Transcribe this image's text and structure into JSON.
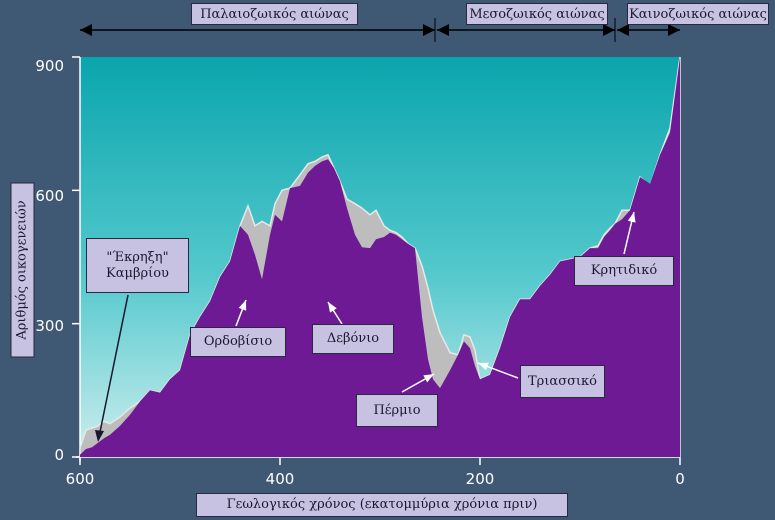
{
  "chart_data": {
    "type": "area",
    "title": "",
    "xlabel": "Γεωλογικός χρόνος (εκατομμύρια χρόνια πριν)",
    "ylabel": "Αριθμός οικογενειών",
    "xlim": [
      600,
      0
    ],
    "ylim": [
      0,
      900
    ],
    "x_ticks": [
      "600",
      "400",
      "200",
      "0"
    ],
    "y_ticks": [
      "0",
      "300",
      "600",
      "900"
    ],
    "grid": false,
    "eras": [
      {
        "label": "Παλαιοζωικός αιώνας",
        "from": 600,
        "to": 245
      },
      {
        "label": "Μεσοζωικός αιώνας",
        "from": 245,
        "to": 65
      },
      {
        "label": "Καινοζωικός αιώνας",
        "from": 65,
        "to": 0
      }
    ],
    "series": [
      {
        "x": [
          600,
          594,
          588,
          582,
          576,
          570,
          560,
          550,
          540,
          530,
          520,
          510,
          500,
          490,
          480,
          470,
          460,
          450,
          440,
          432,
          425,
          418,
          410,
          405,
          398,
          390,
          380,
          372,
          365,
          358,
          352,
          346,
          340,
          333,
          325,
          318,
          310,
          304,
          296,
          290,
          284,
          278,
          272,
          265,
          258,
          252,
          247,
          240,
          230,
          222,
          216,
          210,
          205,
          200,
          190,
          180,
          170,
          160,
          150,
          140,
          130,
          120,
          110,
          100,
          90,
          82,
          76,
          70,
          65,
          58,
          50,
          40,
          30,
          20,
          10,
          0
        ],
        "y": [
          5,
          18,
          22,
          32,
          42,
          50,
          70,
          95,
          125,
          150,
          145,
          175,
          195,
          275,
          315,
          350,
          405,
          440,
          520,
          500,
          455,
          400,
          500,
          545,
          530,
          605,
          610,
          640,
          655,
          665,
          670,
          650,
          620,
          560,
          500,
          472,
          470,
          490,
          495,
          505,
          500,
          490,
          480,
          470,
          315,
          220,
          175,
          155,
          195,
          230,
          260,
          245,
          205,
          175,
          185,
          245,
          315,
          355,
          355,
          385,
          410,
          440,
          445,
          450,
          470,
          470,
          495,
          510,
          525,
          535,
          555,
          630,
          615,
          680,
          730,
          990
        ]
      },
      {
        "x": [
          600,
          594,
          588,
          582,
          576,
          570,
          560,
          550,
          540,
          530,
          520,
          510,
          500,
          490,
          480,
          470,
          460,
          450,
          440,
          432,
          425,
          418,
          410,
          405,
          398,
          390,
          380,
          372,
          365,
          358,
          352,
          346,
          340,
          333,
          325,
          318,
          310,
          304,
          296,
          290,
          284,
          278,
          272,
          265,
          258,
          252,
          247,
          240,
          230,
          222,
          216,
          210,
          205,
          200,
          190,
          180,
          170,
          160,
          150,
          140,
          130,
          120,
          110,
          100,
          90,
          82,
          76,
          70,
          65,
          58,
          50,
          40,
          30,
          20,
          10,
          0
        ],
        "y": [
          20,
          60,
          65,
          70,
          80,
          75,
          90,
          110,
          125,
          150,
          145,
          175,
          195,
          275,
          315,
          350,
          405,
          440,
          520,
          565,
          520,
          530,
          520,
          570,
          600,
          605,
          635,
          660,
          665,
          675,
          680,
          650,
          620,
          580,
          570,
          560,
          545,
          555,
          520,
          510,
          505,
          495,
          480,
          470,
          430,
          380,
          330,
          280,
          235,
          230,
          275,
          270,
          240,
          175,
          185,
          245,
          315,
          355,
          355,
          385,
          410,
          440,
          445,
          450,
          470,
          475,
          500,
          515,
          525,
          555,
          555,
          630,
          610,
          680,
          740,
          990
        ]
      }
    ],
    "annotations": [
      {
        "label": "\"Έκρηξη\"\nΚαμβρίου",
        "x": 590,
        "y": 40
      },
      {
        "label": "Ορδοβίσιο",
        "x": 440,
        "y": 480
      },
      {
        "label": "Δεβόνιο",
        "x": 358,
        "y": 400
      },
      {
        "label": "Πέρμιο",
        "x": 245,
        "y": 300
      },
      {
        "label": "Τριασσικό",
        "x": 210,
        "y": 270
      },
      {
        "label": "Κρητιδικό",
        "x": 50,
        "y": 710
      }
    ]
  }
}
